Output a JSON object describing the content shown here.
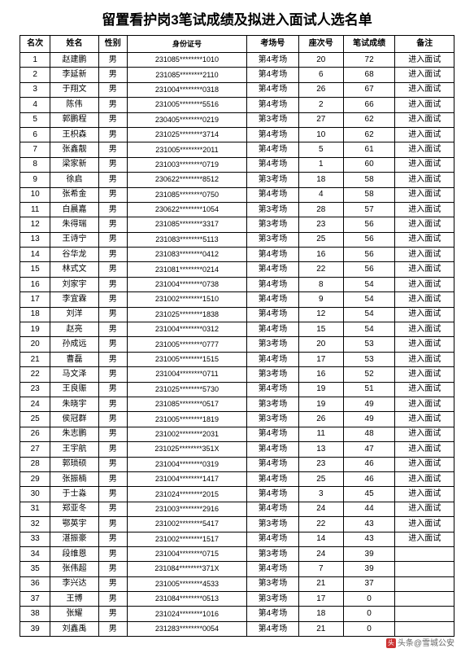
{
  "title": "留置看护岗3笔试成绩及拟进入面试人选名单",
  "columns": [
    "名次",
    "姓名",
    "性别",
    "身份证号",
    "考场号",
    "座次号",
    "笔试成绩",
    "备注"
  ],
  "rows": [
    [
      "1",
      "赵建鹏",
      "男",
      "231085********1010",
      "第4考场",
      "20",
      "72",
      "进入面试"
    ],
    [
      "2",
      "李延新",
      "男",
      "231085********2110",
      "第4考场",
      "6",
      "68",
      "进入面试"
    ],
    [
      "3",
      "于翔文",
      "男",
      "231004********0318",
      "第4考场",
      "26",
      "67",
      "进入面试"
    ],
    [
      "4",
      "陈伟",
      "男",
      "231005********5516",
      "第4考场",
      "2",
      "66",
      "进入面试"
    ],
    [
      "5",
      "郭鹏程",
      "男",
      "230405********0219",
      "第3考场",
      "27",
      "62",
      "进入面试"
    ],
    [
      "6",
      "王枳森",
      "男",
      "231025********3714",
      "第4考场",
      "10",
      "62",
      "进入面试"
    ],
    [
      "7",
      "张鑫靓",
      "男",
      "231005********2011",
      "第4考场",
      "5",
      "61",
      "进入面试"
    ],
    [
      "8",
      "梁家新",
      "男",
      "231003********0719",
      "第4考场",
      "1",
      "60",
      "进入面试"
    ],
    [
      "9",
      "徐启",
      "男",
      "230622********8512",
      "第3考场",
      "18",
      "58",
      "进入面试"
    ],
    [
      "10",
      "张希金",
      "男",
      "231085********0750",
      "第4考场",
      "4",
      "58",
      "进入面试"
    ],
    [
      "11",
      "白晨嘉",
      "男",
      "230622********1054",
      "第3考场",
      "28",
      "57",
      "进入面试"
    ],
    [
      "12",
      "朱得瑞",
      "男",
      "231085********3317",
      "第3考场",
      "23",
      "56",
      "进入面试"
    ],
    [
      "13",
      "王诗宁",
      "男",
      "231083********5113",
      "第3考场",
      "25",
      "56",
      "进入面试"
    ],
    [
      "14",
      "谷华龙",
      "男",
      "231083********0412",
      "第4考场",
      "16",
      "56",
      "进入面试"
    ],
    [
      "15",
      "林式文",
      "男",
      "231081********0214",
      "第4考场",
      "22",
      "56",
      "进入面试"
    ],
    [
      "16",
      "刘家宇",
      "男",
      "231004********0738",
      "第4考场",
      "8",
      "54",
      "进入面试"
    ],
    [
      "17",
      "李宜霖",
      "男",
      "231002********1510",
      "第4考场",
      "9",
      "54",
      "进入面试"
    ],
    [
      "18",
      "刘洋",
      "男",
      "231025********1838",
      "第4考场",
      "12",
      "54",
      "进入面试"
    ],
    [
      "19",
      "赵亮",
      "男",
      "231004********0312",
      "第4考场",
      "15",
      "54",
      "进入面试"
    ],
    [
      "20",
      "孙成远",
      "男",
      "231005********0777",
      "第3考场",
      "20",
      "53",
      "进入面试"
    ],
    [
      "21",
      "曹磊",
      "男",
      "231005********1515",
      "第4考场",
      "17",
      "53",
      "进入面试"
    ],
    [
      "22",
      "马文泽",
      "男",
      "231004********0711",
      "第3考场",
      "16",
      "52",
      "进入面试"
    ],
    [
      "23",
      "王良赈",
      "男",
      "231025********5730",
      "第4考场",
      "19",
      "51",
      "进入面试"
    ],
    [
      "24",
      "朱晓宇",
      "男",
      "231085********0517",
      "第3考场",
      "19",
      "49",
      "进入面试"
    ],
    [
      "25",
      "侯冠群",
      "男",
      "231005********1819",
      "第3考场",
      "26",
      "49",
      "进入面试"
    ],
    [
      "26",
      "朱志鹏",
      "男",
      "231002********2031",
      "第4考场",
      "11",
      "48",
      "进入面试"
    ],
    [
      "27",
      "王宇航",
      "男",
      "231025********351X",
      "第4考场",
      "13",
      "47",
      "进入面试"
    ],
    [
      "28",
      "郭琐硕",
      "男",
      "231004********0319",
      "第4考场",
      "23",
      "46",
      "进入面试"
    ],
    [
      "29",
      "张振楠",
      "男",
      "231004********1417",
      "第4考场",
      "25",
      "46",
      "进入面试"
    ],
    [
      "30",
      "于士淼",
      "男",
      "231024********2015",
      "第4考场",
      "3",
      "45",
      "进入面试"
    ],
    [
      "31",
      "郑亚冬",
      "男",
      "231003********2916",
      "第4考场",
      "24",
      "44",
      "进入面试"
    ],
    [
      "32",
      "鄂英宇",
      "男",
      "231002********5417",
      "第3考场",
      "22",
      "43",
      "进入面试"
    ],
    [
      "33",
      "湛振豪",
      "男",
      "231002********1517",
      "第4考场",
      "14",
      "43",
      "进入面试"
    ],
    [
      "34",
      "段维恩",
      "男",
      "231004********0715",
      "第3考场",
      "24",
      "39",
      ""
    ],
    [
      "35",
      "张伟超",
      "男",
      "231084********371X",
      "第4考场",
      "7",
      "39",
      ""
    ],
    [
      "36",
      "李兴达",
      "男",
      "231005********4533",
      "第3考场",
      "21",
      "37",
      ""
    ],
    [
      "37",
      "王博",
      "男",
      "231084********0513",
      "第3考场",
      "17",
      "0",
      ""
    ],
    [
      "38",
      "张耀",
      "男",
      "231024********1016",
      "第4考场",
      "18",
      "0",
      ""
    ],
    [
      "39",
      "刘鑫禹",
      "男",
      "231283********0054",
      "第4考场",
      "21",
      "0",
      ""
    ]
  ],
  "footer": {
    "icon": "头",
    "text": "头条@雪城公安"
  }
}
